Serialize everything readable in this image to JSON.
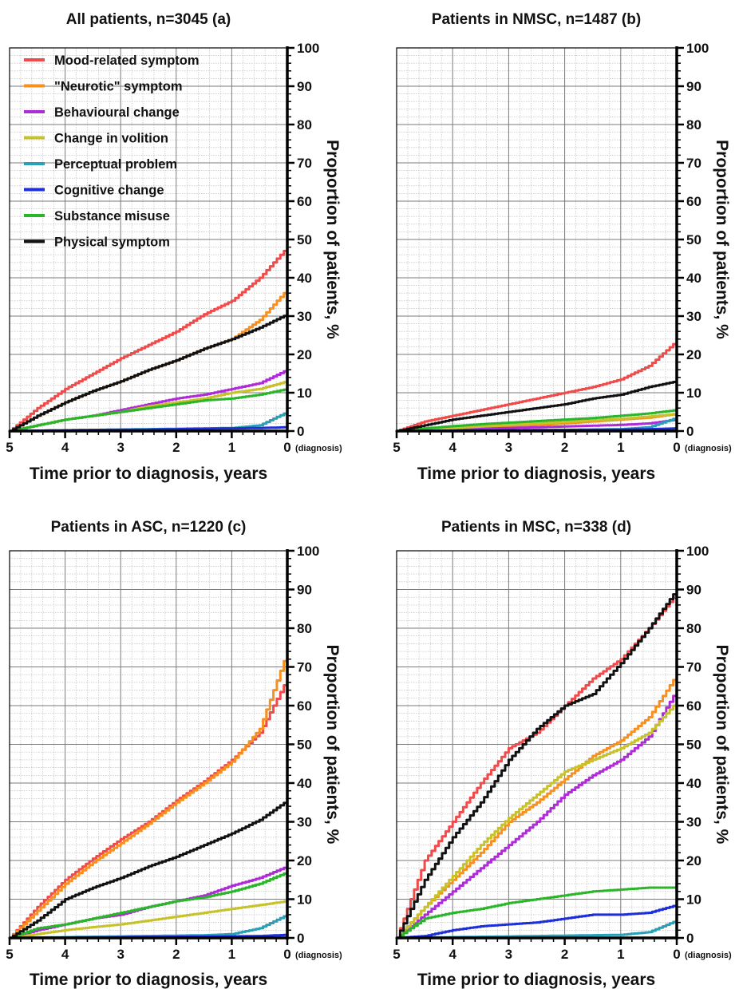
{
  "figure": {
    "x_axis_label": "Time prior to diagnosis, years",
    "y_axis_label": "Proportion of patients, %",
    "x_end_annotation": "(diagnosis)"
  },
  "legend_entries": [
    {
      "label": "Mood-related symptom",
      "color": "#f04a4a"
    },
    {
      "label": "\"Neurotic\" symptom",
      "color": "#f7901e"
    },
    {
      "label": "Behavioural change",
      "color": "#b02bd8"
    },
    {
      "label": "Change in volition",
      "color": "#c7c22a"
    },
    {
      "label": "Perceptual problem",
      "color": "#2aa0b8"
    },
    {
      "label": "Cognitive change",
      "color": "#1c2fd8"
    },
    {
      "label": "Substance misuse",
      "color": "#2bb52b"
    },
    {
      "label": "Physical symptom",
      "color": "#111111"
    }
  ],
  "chart_data": [
    {
      "type": "line",
      "title": "All patients, n=3045 (a)",
      "xlabel": "Time prior to diagnosis, years",
      "ylabel": "Proportion of patients, %",
      "xlim": [
        5,
        0
      ],
      "ylim": [
        0,
        100
      ],
      "x_ticks": [
        "5",
        "4",
        "3",
        "2",
        "1",
        "0"
      ],
      "y_ticks": [
        "0",
        "10",
        "20",
        "30",
        "40",
        "50",
        "60",
        "70",
        "80",
        "90",
        "100"
      ],
      "grid": true,
      "legend": "top-left",
      "x": [
        5,
        4.5,
        4,
        3.5,
        3,
        2.5,
        2,
        1.5,
        1,
        0.5,
        0
      ],
      "series": [
        {
          "name": "Mood-related symptom",
          "color": "#f04a4a",
          "values": [
            0,
            6,
            11,
            15,
            19,
            22.5,
            26,
            30.5,
            34,
            40,
            48
          ]
        },
        {
          "name": "\"Neurotic\" symptom",
          "color": "#f7901e",
          "values": [
            0,
            4,
            7.5,
            10.5,
            13,
            16,
            18.5,
            21.5,
            24,
            29,
            37
          ]
        },
        {
          "name": "Behavioural change",
          "color": "#b02bd8",
          "values": [
            0,
            1.5,
            3,
            4,
            5.5,
            7,
            8.5,
            9.5,
            11,
            12.5,
            16
          ]
        },
        {
          "name": "Change in volition",
          "color": "#c7c22a",
          "values": [
            0,
            1.5,
            3,
            4,
            5,
            6.5,
            7.5,
            8.5,
            10,
            11,
            13
          ]
        },
        {
          "name": "Perceptual problem",
          "color": "#2aa0b8",
          "values": [
            0,
            0.1,
            0.2,
            0.3,
            0.4,
            0.5,
            0.6,
            0.7,
            0.8,
            1.5,
            5
          ]
        },
        {
          "name": "Cognitive change",
          "color": "#1c2fd8",
          "values": [
            0,
            0.1,
            0.2,
            0.3,
            0.35,
            0.4,
            0.5,
            0.6,
            0.7,
            0.8,
            1
          ]
        },
        {
          "name": "Substance misuse",
          "color": "#2bb52b",
          "values": [
            0,
            1.5,
            3,
            4,
            5,
            6,
            7,
            8,
            8.5,
            9.5,
            11
          ]
        },
        {
          "name": "Physical symptom",
          "color": "#111111",
          "values": [
            0,
            4,
            7.5,
            10.5,
            13,
            16,
            18.5,
            21.5,
            24,
            27,
            30.5
          ]
        }
      ]
    },
    {
      "type": "line",
      "title": "Patients in NMSC, n=1487 (b)",
      "xlabel": "Time prior to diagnosis, years",
      "ylabel": "Proportion of patients, %",
      "xlim": [
        5,
        0
      ],
      "ylim": [
        0,
        100
      ],
      "x_ticks": [
        "5",
        "4",
        "3",
        "2",
        "1",
        "0"
      ],
      "y_ticks": [
        "0",
        "10",
        "20",
        "30",
        "40",
        "50",
        "60",
        "70",
        "80",
        "90",
        "100"
      ],
      "grid": true,
      "x": [
        5,
        4.5,
        4,
        3.5,
        3,
        2.5,
        2,
        1.5,
        1,
        0.5,
        0
      ],
      "series": [
        {
          "name": "Mood-related symptom",
          "color": "#f04a4a",
          "values": [
            0,
            2.5,
            4,
            5.5,
            7,
            8.5,
            10,
            11.5,
            13.5,
            17,
            23.5
          ]
        },
        {
          "name": "\"Neurotic\" symptom",
          "color": "#f7901e",
          "values": [
            0,
            0.3,
            0.6,
            0.9,
            1.2,
            1.6,
            2,
            2.5,
            3,
            3.5,
            4.5
          ]
        },
        {
          "name": "Behavioural change",
          "color": "#b02bd8",
          "values": [
            0,
            0.2,
            0.4,
            0.6,
            0.8,
            1,
            1.2,
            1.4,
            1.6,
            2,
            3
          ]
        },
        {
          "name": "Change in volition",
          "color": "#c7c22a",
          "values": [
            0,
            0.4,
            0.8,
            1.2,
            1.6,
            2,
            2.4,
            2.8,
            3.2,
            3.8,
            4.5
          ]
        },
        {
          "name": "Perceptual problem",
          "color": "#2aa0b8",
          "values": [
            0,
            0.05,
            0.1,
            0.15,
            0.2,
            0.25,
            0.3,
            0.4,
            0.5,
            1,
            3.5
          ]
        },
        {
          "name": "Cognitive change",
          "color": "#1c2fd8",
          "values": [
            0,
            0.05,
            0.1,
            0.15,
            0.2,
            0.25,
            0.3,
            0.35,
            0.4,
            0.5,
            0.7
          ]
        },
        {
          "name": "Substance misuse",
          "color": "#2bb52b",
          "values": [
            0,
            0.7,
            1.3,
            1.8,
            2.2,
            2.6,
            3,
            3.4,
            4,
            4.6,
            5.5
          ]
        },
        {
          "name": "Physical symptom",
          "color": "#111111",
          "values": [
            0,
            1.5,
            3,
            4,
            5,
            6,
            7,
            8.5,
            9.5,
            11.5,
            13
          ]
        }
      ]
    },
    {
      "type": "line",
      "title": "Patients in ASC, n=1220 (c)",
      "xlabel": "Time prior to diagnosis, years",
      "ylabel": "Proportion of patients, %",
      "xlim": [
        5,
        0
      ],
      "ylim": [
        0,
        100
      ],
      "x_ticks": [
        "5",
        "4",
        "3",
        "2",
        "1",
        "0"
      ],
      "y_ticks": [
        "0",
        "10",
        "20",
        "30",
        "40",
        "50",
        "60",
        "70",
        "80",
        "90",
        "100"
      ],
      "grid": true,
      "x": [
        5,
        4.5,
        4,
        3.5,
        3,
        2.5,
        2,
        1.5,
        1,
        0.5,
        0
      ],
      "series": [
        {
          "name": "Mood-related symptom",
          "color": "#f04a4a",
          "values": [
            0,
            8,
            15,
            20.5,
            25.5,
            30,
            35.5,
            40.5,
            46,
            53,
            67
          ]
        },
        {
          "name": "\"Neurotic\" symptom",
          "color": "#f7901e",
          "values": [
            0,
            7,
            14,
            19.5,
            24.5,
            29.5,
            35,
            40,
            45.5,
            54,
            74
          ]
        },
        {
          "name": "Behavioural change",
          "color": "#b02bd8",
          "values": [
            0,
            2,
            3.5,
            5,
            6,
            8,
            9.5,
            11,
            13.5,
            15.5,
            18.5
          ]
        },
        {
          "name": "Change in volition",
          "color": "#c7c22a",
          "values": [
            0,
            1,
            2,
            2.8,
            3.5,
            4.5,
            5.5,
            6.5,
            7.5,
            8.5,
            9.5
          ]
        },
        {
          "name": "Perceptual problem",
          "color": "#2aa0b8",
          "values": [
            0,
            0.1,
            0.2,
            0.3,
            0.4,
            0.5,
            0.6,
            0.7,
            1,
            2.5,
            6
          ]
        },
        {
          "name": "Cognitive change",
          "color": "#1c2fd8",
          "values": [
            0,
            0.05,
            0.1,
            0.15,
            0.2,
            0.25,
            0.3,
            0.35,
            0.4,
            0.5,
            0.8
          ]
        },
        {
          "name": "Substance misuse",
          "color": "#2bb52b",
          "values": [
            0,
            2.5,
            3.5,
            5,
            6.5,
            8,
            9.5,
            10.5,
            12,
            14,
            17
          ]
        },
        {
          "name": "Physical symptom",
          "color": "#111111",
          "values": [
            0,
            4.5,
            10,
            13,
            15.5,
            18.5,
            21,
            24,
            27,
            30.5,
            35.5
          ]
        }
      ]
    },
    {
      "type": "line",
      "title": "Patients in MSC, n=338 (d)",
      "xlabel": "Time prior to diagnosis, years",
      "ylabel": "Proportion of patients, %",
      "xlim": [
        5,
        0
      ],
      "ylim": [
        0,
        100
      ],
      "x_ticks": [
        "5",
        "4",
        "3",
        "2",
        "1",
        "0"
      ],
      "y_ticks": [
        "0",
        "10",
        "20",
        "30",
        "40",
        "50",
        "60",
        "70",
        "80",
        "90",
        "100"
      ],
      "grid": true,
      "x": [
        5,
        4.5,
        4,
        3.5,
        3,
        2.5,
        2,
        1.5,
        1,
        0.5,
        0
      ],
      "series": [
        {
          "name": "Mood-related symptom",
          "color": "#f04a4a",
          "values": [
            0,
            20,
            30,
            40,
            49,
            53,
            60,
            67,
            72,
            80,
            89
          ]
        },
        {
          "name": "\"Neurotic\" symptom",
          "color": "#f7901e",
          "values": [
            0,
            8,
            15,
            22,
            30,
            35,
            41,
            47,
            51,
            57,
            68
          ]
        },
        {
          "name": "Behavioural change",
          "color": "#b02bd8",
          "values": [
            0,
            6,
            12,
            18,
            24,
            30,
            37,
            42,
            46,
            52,
            64
          ]
        },
        {
          "name": "Change in volition",
          "color": "#c7c22a",
          "values": [
            0,
            8,
            16,
            24,
            31,
            37,
            43,
            46,
            49,
            53,
            61
          ]
        },
        {
          "name": "Perceptual problem",
          "color": "#2aa0b8",
          "values": [
            0,
            0.1,
            0.2,
            0.3,
            0.4,
            0.5,
            0.6,
            0.7,
            0.8,
            1.5,
            4.5
          ]
        },
        {
          "name": "Cognitive change",
          "color": "#1c2fd8",
          "values": [
            0,
            0.5,
            2,
            3,
            3.5,
            4,
            5,
            6,
            6,
            6.5,
            8.5
          ]
        },
        {
          "name": "Substance misuse",
          "color": "#2bb52b",
          "values": [
            0,
            5,
            6.5,
            7.5,
            9,
            10,
            11,
            12,
            12.5,
            13,
            13
          ]
        },
        {
          "name": "Physical symptom",
          "color": "#111111",
          "values": [
            0,
            15,
            26,
            35,
            46,
            54,
            60,
            63,
            71,
            80,
            90
          ]
        }
      ]
    }
  ]
}
